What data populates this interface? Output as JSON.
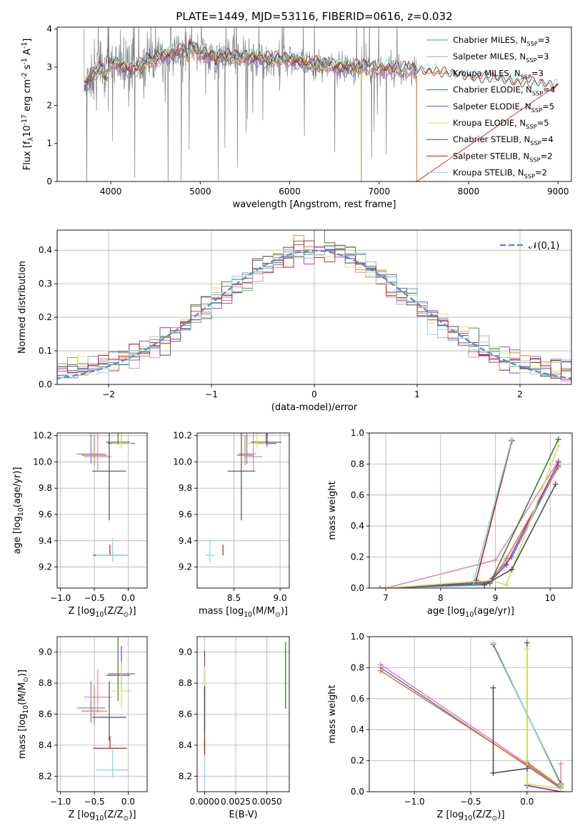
{
  "title": "PLATE=1449, MJD=53116, FIBERID=0616, z=0.032",
  "colors": {
    "Chabrier MILES": "#5b84d6",
    "Salpeter MILES": "#e683b8",
    "Kroupa MILES": "#e07b25",
    "Chabrier ELODIE": "#3f7a3c",
    "Salpeter ELODIE": "#9b30c8",
    "Kroupa ELODIE": "#d7e44a",
    "Chabrier STELIB": "#4f4f4f",
    "Salpeter STELIB": "#c01a1a",
    "Kroupa STELIB": "#74dede",
    "data": "#808080",
    "gaussian": "#5b8bd6"
  },
  "chart_data": [
    {
      "type": "line",
      "id": "spectrum",
      "xlabel": "wavelength [Angstrom, rest frame]",
      "ylabel": "Flux [f$_\\lambda$10$^{-17}$ erg cm$^{-2}$ s$^{-1}$ A$^{-1}$]",
      "xlim": [
        3400,
        9150
      ],
      "ylim": [
        0,
        4.05
      ],
      "xticks": [
        4000,
        5000,
        6000,
        7000,
        8000,
        9000
      ],
      "yticks": [
        0,
        1,
        2,
        3,
        4
      ],
      "grid": false,
      "legend_position": "top-right",
      "legend": [
        {
          "name": "Chabrier MILES",
          "nssp": "3"
        },
        {
          "name": "Salpeter MILES",
          "nssp": "3"
        },
        {
          "name": "Kroupa MILES",
          "nssp": "3"
        },
        {
          "name": "Chabrier ELODIE",
          "nssp": "4"
        },
        {
          "name": "Salpeter ELODIE",
          "nssp": "5"
        },
        {
          "name": "Kroupa ELODIE",
          "nssp": "5"
        },
        {
          "name": "Chabrier STELIB",
          "nssp": "4"
        },
        {
          "name": "Salpeter STELIB",
          "nssp": "2"
        },
        {
          "name": "Kroupa STELIB",
          "nssp": "2"
        }
      ],
      "continuum": {
        "x": [
          3700,
          3800,
          3900,
          4000,
          4100,
          4200,
          4300,
          4400,
          4500,
          4600,
          4700,
          4800,
          4900,
          5000,
          5200,
          5400,
          5600,
          5800,
          6000,
          6200,
          6400,
          6600,
          6800,
          7000,
          7200,
          7400
        ],
        "y": [
          2.5,
          2.85,
          2.95,
          3.1,
          3.05,
          2.95,
          3.0,
          3.15,
          3.2,
          3.3,
          3.35,
          3.45,
          3.55,
          3.35,
          3.3,
          3.25,
          3.25,
          3.2,
          3.2,
          3.1,
          3.05,
          3.0,
          3.0,
          2.95,
          2.95,
          2.9
        ]
      },
      "model_tail": {
        "x": [
          7400,
          7600,
          7800,
          8000,
          8200,
          8400,
          8600,
          8800,
          8950
        ],
        "y": [
          2.85,
          2.85,
          2.75,
          2.7,
          2.65,
          2.6,
          2.55,
          2.5,
          2.45
        ]
      },
      "dips": [
        {
          "x": 3730,
          "y": 0
        },
        {
          "x": 4640,
          "y": 0
        },
        {
          "x": 6800,
          "y": 0
        },
        {
          "x": 7420,
          "y": 0
        }
      ]
    },
    {
      "type": "histogram",
      "id": "residuals",
      "xlabel": "(data-model)/error",
      "ylabel": "Normed distribution",
      "xlim": [
        -2.5,
        2.5
      ],
      "ylim": [
        0,
        0.46
      ],
      "xticks": [
        -2,
        -1,
        0,
        1,
        2
      ],
      "yticks": [
        0,
        0.1,
        0.2,
        0.3,
        0.4
      ],
      "grid": true,
      "legend_position": "top-right",
      "gaussian_label": "$\\mathcal{N}(0,1)$",
      "bin_width": 0.1
    },
    {
      "type": "scatter",
      "id": "age-vs-Z",
      "xlabel": "Z [log$_{10}$(Z/Z$_\\odot$)]",
      "ylabel": "age  [log$_{10}$(age/yr)]",
      "xlim": [
        -1.05,
        0.28
      ],
      "ylim": [
        9.04,
        10.22
      ],
      "xticks": [
        -1.0,
        -0.5,
        0.0
      ],
      "yticks": [
        9.2,
        9.4,
        9.6,
        9.8,
        10.0,
        10.2
      ],
      "grid": true
    },
    {
      "type": "scatter",
      "id": "age-vs-mass",
      "xlabel": "mass [log$_{10}$(M/M$_\\odot$)]",
      "ylabel": "",
      "xlim": [
        8.1,
        9.1
      ],
      "ylim": [
        9.04,
        10.22
      ],
      "xticks": [
        8.5,
        9.0
      ],
      "yticks": [
        9.2,
        9.4,
        9.6,
        9.8,
        10.0,
        10.2
      ],
      "grid": true
    },
    {
      "type": "line",
      "id": "weight-vs-age",
      "xlabel": "age  [log$_{10}$(age/yr)]",
      "ylabel": "mass weight",
      "xlim": [
        6.7,
        10.4
      ],
      "ylim": [
        0,
        1.0
      ],
      "xticks": [
        7,
        8,
        9,
        10
      ],
      "yticks": [
        0.0,
        0.2,
        0.4,
        0.6,
        0.8,
        1.0
      ],
      "grid": true
    },
    {
      "type": "scatter",
      "id": "mass-vs-Z",
      "xlabel": "Z [log$_{10}$(Z/Z$_\\odot$)]",
      "ylabel": "mass [log$_{10}$(M/M$_\\odot$)]",
      "xlim": [
        -1.05,
        0.28
      ],
      "ylim": [
        8.1,
        9.1
      ],
      "xticks": [
        -1.0,
        -0.5,
        0.0
      ],
      "yticks": [
        8.2,
        8.4,
        8.6,
        8.8,
        9.0
      ],
      "grid": true
    },
    {
      "type": "scatter",
      "id": "mass-vs-ebv",
      "xlabel": "E(B-V)",
      "ylabel": "",
      "xlim": [
        -0.0006,
        0.0068
      ],
      "ylim": [
        8.1,
        9.1
      ],
      "xticks": [
        0.0,
        0.0025,
        0.005
      ],
      "xticklabels": [
        "0.0000",
        "0.0025",
        "0.0050"
      ],
      "yticks": [
        8.2,
        8.4,
        8.6,
        8.8,
        9.0
      ],
      "grid": true
    },
    {
      "type": "line",
      "id": "weight-vs-Z",
      "xlabel": "Z [log$_{10}$(Z/Z$_\\odot$)]",
      "ylabel": "mass weight",
      "xlim": [
        -1.4,
        0.4
      ],
      "ylim": [
        0,
        1.0
      ],
      "xticks": [
        -1.0,
        -0.5,
        0.0
      ],
      "yticks": [
        0.0,
        0.2,
        0.4,
        0.6,
        0.8,
        1.0
      ],
      "grid": true
    }
  ],
  "models": [
    {
      "name": "Chabrier MILES",
      "age": 10.06,
      "age_err": 0.15,
      "Z": -0.55,
      "Z_err": 0.42,
      "mass": 8.64,
      "mass_err": 0.19,
      "ebv": 0.0,
      "w_age": [
        [
          6.9,
          0.0
        ],
        [
          8.8,
          0.02
        ],
        [
          9.3,
          0.2
        ],
        [
          10.15,
          0.79
        ]
      ],
      "w_Z": [
        [
          -1.3,
          0.8
        ],
        [
          0.3,
          0.02
        ],
        [
          0.0,
          0.18
        ]
      ]
    },
    {
      "name": "Salpeter MILES",
      "age": 10.04,
      "age_err": 0.22,
      "Z": -0.45,
      "Z_err": 0.4,
      "mass": 8.71,
      "mass_err": 0.2,
      "ebv": 0.0,
      "w_age": [
        [
          7.0,
          0.0
        ],
        [
          9.0,
          0.18
        ],
        [
          10.15,
          0.82
        ]
      ],
      "w_Z": [
        [
          -1.3,
          0.82
        ],
        [
          0.3,
          0.03
        ],
        [
          0.3,
          0.18
        ]
      ]
    },
    {
      "name": "Kroupa MILES",
      "age": 10.05,
      "age_err": 0.15,
      "Z": -0.5,
      "Z_err": 0.38,
      "mass": 8.62,
      "mass_err": 0.18,
      "ebv": 0.0,
      "w_age": [
        [
          6.9,
          0.0
        ],
        [
          8.9,
          0.03
        ],
        [
          9.2,
          0.19
        ],
        [
          10.15,
          0.78
        ]
      ],
      "w_Z": [
        [
          -1.3,
          0.78
        ],
        [
          0.3,
          0.03
        ],
        [
          0.0,
          0.19
        ]
      ]
    },
    {
      "name": "Chabrier ELODIE",
      "age": 10.15,
      "age_err": 0.04,
      "Z": -0.15,
      "Z_err": 0.35,
      "mass": 8.85,
      "mass_err": 0.33,
      "ebv": 0.0065,
      "w_age": [
        [
          7.0,
          0.0
        ],
        [
          8.9,
          0.03
        ],
        [
          10.15,
          0.96
        ]
      ],
      "w_Z": [
        [
          0.0,
          0.96
        ],
        [
          0.0,
          0.04
        ],
        [
          0.3,
          0.0
        ]
      ]
    },
    {
      "name": "Salpeter ELODIE",
      "age": 10.14,
      "age_err": 0.05,
      "Z": -0.1,
      "Z_err": 0.4,
      "mass": 8.86,
      "mass_err": 0.2,
      "ebv": 0.0,
      "w_age": [
        [
          7.0,
          0.0
        ],
        [
          8.9,
          0.04
        ],
        [
          9.2,
          0.15
        ],
        [
          10.15,
          0.81
        ]
      ],
      "w_Z": [
        [
          0.0,
          0.04
        ],
        [
          0.3,
          0.0
        ],
        [
          0.3,
          0.0
        ]
      ]
    },
    {
      "name": "Kroupa ELODIE",
      "age": 10.14,
      "age_err": 0.08,
      "Z": -0.1,
      "Z_err": 0.3,
      "mass": 8.75,
      "mass_err": 0.22,
      "ebv": 0.0,
      "w_age": [
        [
          7.0,
          0.0
        ],
        [
          8.9,
          0.05
        ],
        [
          9.2,
          0.02
        ],
        [
          10.15,
          0.92
        ]
      ],
      "w_Z": [
        [
          0.0,
          0.92
        ],
        [
          0.0,
          0.05
        ],
        [
          0.3,
          0.02
        ]
      ]
    },
    {
      "name": "Chabrier STELIB",
      "age": 9.93,
      "age_err": 0.75,
      "Z": -0.28,
      "Z_err": 0.5,
      "mass": 8.58,
      "mass_err": 0.3,
      "ebv": 0.0,
      "w_age": [
        [
          8.8,
          0.02
        ],
        [
          9.3,
          0.12
        ],
        [
          10.1,
          0.67
        ]
      ],
      "w_Z": [
        [
          -0.3,
          0.67
        ],
        [
          -0.3,
          0.12
        ],
        [
          0.0,
          0.15
        ]
      ]
    },
    {
      "name": "Salpeter STELIB",
      "age": 9.29,
      "age_err": 0.0,
      "Z": -0.27,
      "Z_err": 0.5,
      "mass": 8.38,
      "mass_err": 0.0,
      "ebv": 0.0,
      "w_age": [
        [
          8.65,
          0.05
        ],
        [
          9.3,
          0.95
        ]
      ],
      "w_Z": [
        [
          -0.3,
          0.95
        ],
        [
          0.3,
          0.05
        ]
      ]
    },
    {
      "name": "Kroupa STELIB",
      "age": 9.29,
      "age_err": 0.1,
      "Z": -0.23,
      "Z_err": 0.48,
      "mass": 8.24,
      "mass_err": 0.1,
      "ebv": 0.0,
      "w_age": [
        [
          8.6,
          0.04
        ],
        [
          9.3,
          0.96
        ]
      ],
      "w_Z": [
        [
          -0.3,
          0.96
        ],
        [
          0.3,
          0.04
        ]
      ]
    }
  ]
}
